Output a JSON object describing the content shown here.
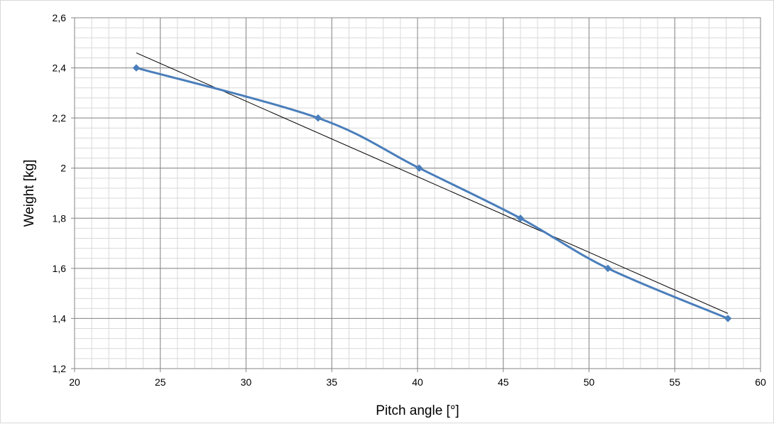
{
  "chart_data": {
    "type": "scatter",
    "xlabel": "Pitch angle [°]",
    "ylabel": "Weight [kg]",
    "xlim": [
      20,
      60
    ],
    "ylim": [
      1.2,
      2.6
    ],
    "x_major_step": 5,
    "x_minor_step": 1,
    "y_major_step": 0.2,
    "y_minor_step": 0.04,
    "x_ticks": [
      "20",
      "25",
      "30",
      "35",
      "40",
      "45",
      "50",
      "55",
      "60"
    ],
    "y_ticks": [
      "1,2",
      "1,4",
      "1,6",
      "1,8",
      "2",
      "2,2",
      "2,4",
      "2,6"
    ],
    "grid": true,
    "legend": "none",
    "series": [
      {
        "color": "#4a7ebb",
        "marker": "diamond",
        "smooth": true,
        "points": [
          {
            "x": 23.6,
            "y": 2.4
          },
          {
            "x": 34.2,
            "y": 2.2
          },
          {
            "x": 40.1,
            "y": 2.0
          },
          {
            "x": 46.0,
            "y": 1.8
          },
          {
            "x": 51.1,
            "y": 1.6
          },
          {
            "x": 58.1,
            "y": 1.4
          }
        ]
      }
    ],
    "trendline": {
      "type": "linear",
      "color": "#000000",
      "start": {
        "x": 23.6,
        "y": 2.46
      },
      "end": {
        "x": 58.1,
        "y": 1.42
      }
    }
  }
}
